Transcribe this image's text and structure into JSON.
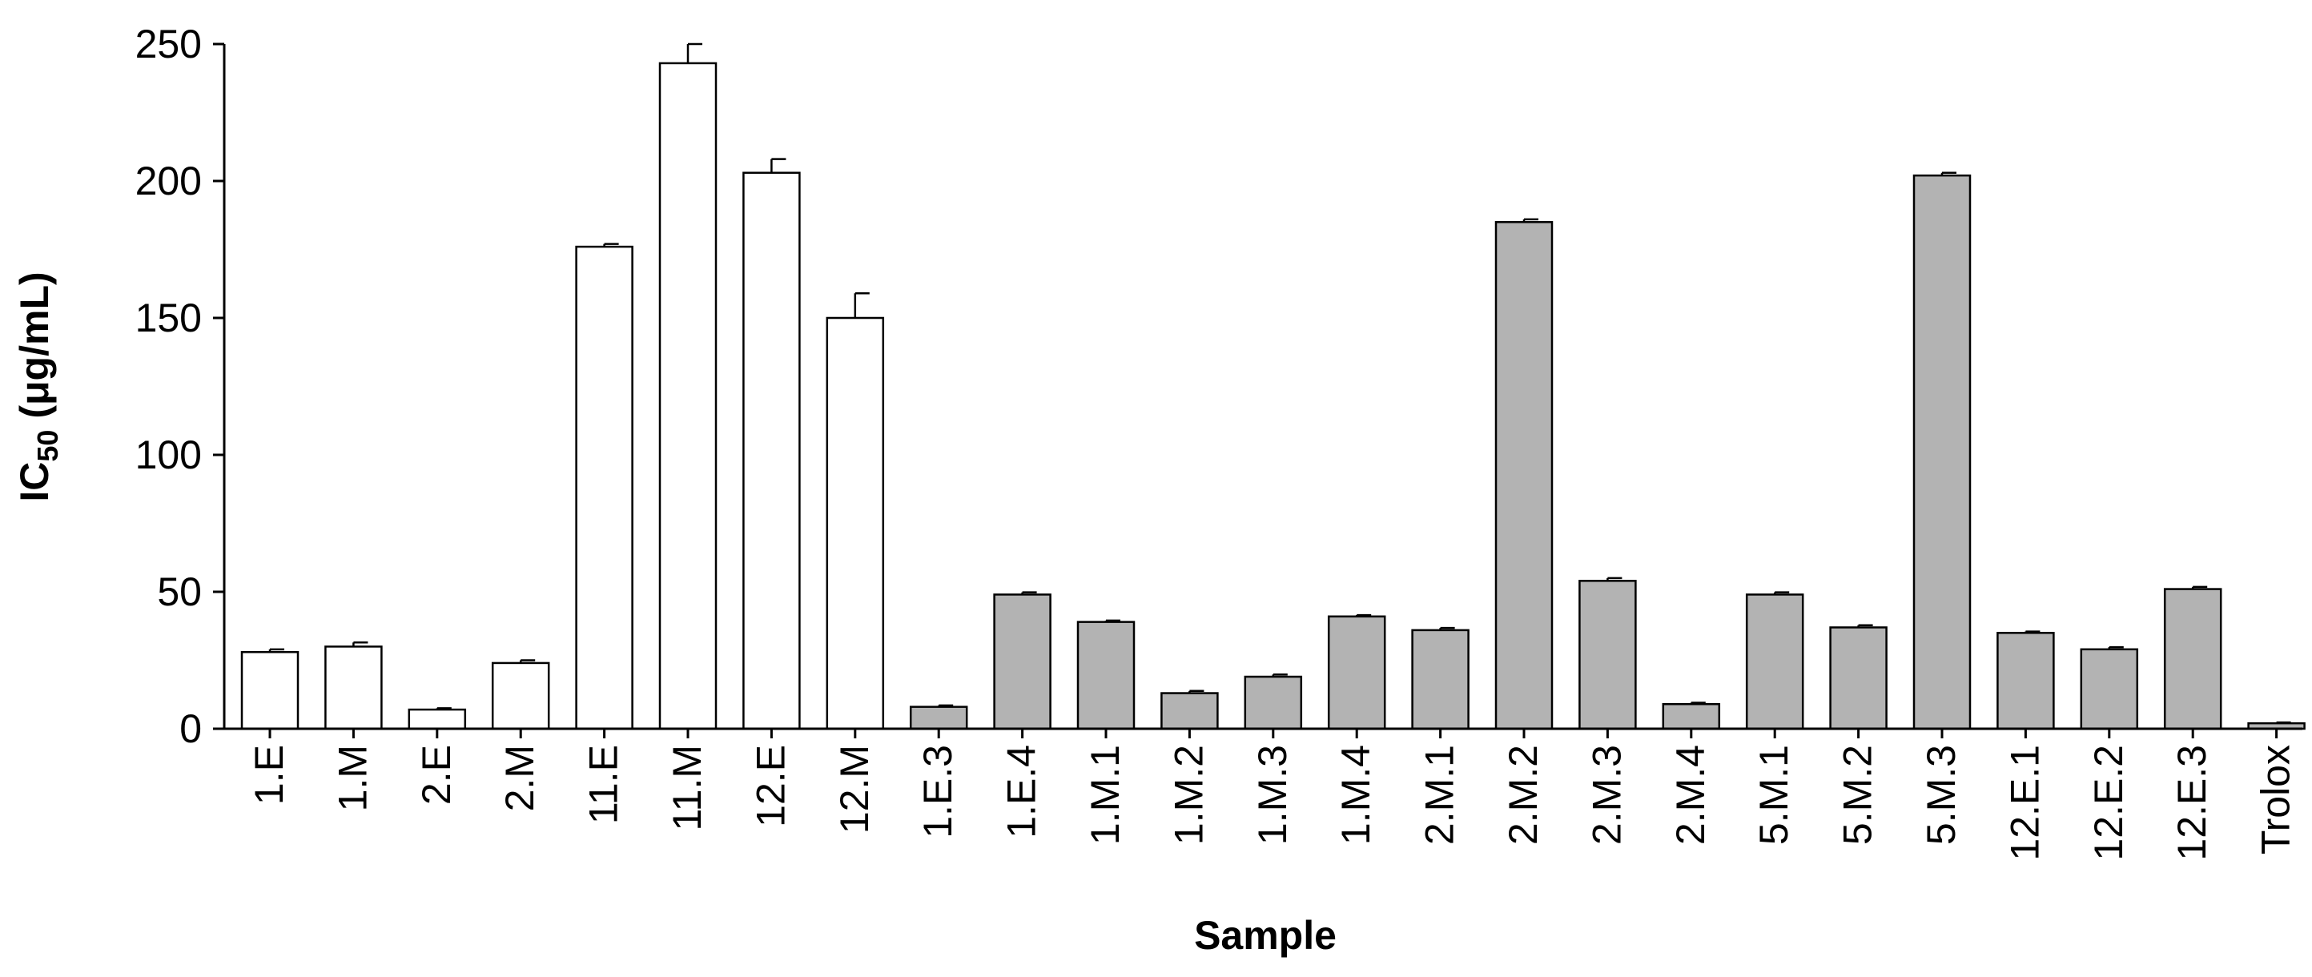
{
  "chart_data": {
    "type": "bar",
    "title": "",
    "xlabel": "Sample",
    "ylabel_main": "IC",
    "ylabel_sub": "50",
    "ylabel_unit": " (μg/mL)",
    "ylim": [
      0,
      250
    ],
    "yticks": [
      0,
      50,
      100,
      150,
      200,
      250
    ],
    "grid": false,
    "legend": "none",
    "colors": {
      "group1": "#ffffff",
      "group2": "#b3b3b3",
      "stroke": "#000000"
    },
    "categories": [
      "1.E",
      "1.M",
      "2.E",
      "2.M",
      "11.E",
      "11.M",
      "12.E",
      "12.M",
      "1.E.3",
      "1.E.4",
      "1.M.1",
      "1.M.2",
      "1.M.3",
      "1.M.4",
      "2.M.1",
      "2.M.2",
      "2.M.3",
      "2.M.4",
      "5.M.1",
      "5.M.2",
      "5.M.3",
      "12.E.1",
      "12.E.2",
      "12.E.3",
      "Trolox"
    ],
    "values": [
      28,
      30,
      7,
      24,
      176,
      243,
      203,
      150,
      8,
      49,
      39,
      13,
      19,
      41,
      36,
      185,
      54,
      9,
      49,
      37,
      202,
      35,
      29,
      51,
      2
    ],
    "errors": [
      1,
      1.5,
      0.5,
      1,
      1,
      7,
      5,
      9,
      0.5,
      0.8,
      0.5,
      0.8,
      0.8,
      0.5,
      0.8,
      1,
      1,
      0.5,
      0.8,
      0.8,
      1,
      0.5,
      0.8,
      0.8,
      0.3
    ],
    "group": [
      1,
      1,
      1,
      1,
      1,
      1,
      1,
      1,
      2,
      2,
      2,
      2,
      2,
      2,
      2,
      2,
      2,
      2,
      2,
      2,
      2,
      2,
      2,
      2,
      2
    ]
  }
}
